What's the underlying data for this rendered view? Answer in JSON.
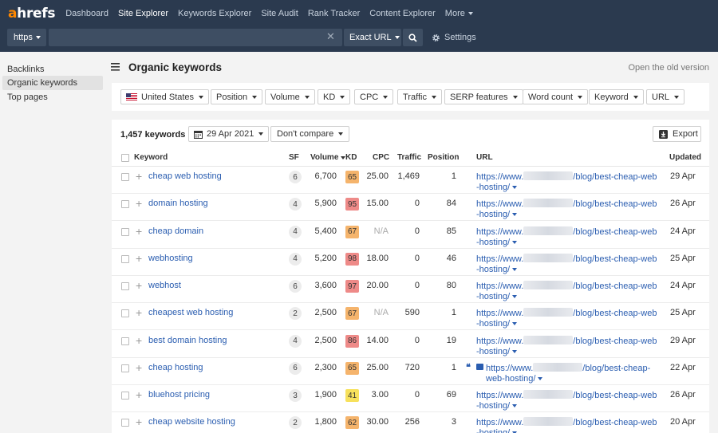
{
  "logo": {
    "a": "a",
    "rest": "hrefs"
  },
  "nav": [
    {
      "label": "Dashboard",
      "active": false
    },
    {
      "label": "Site Explorer",
      "active": true
    },
    {
      "label": "Keywords Explorer",
      "active": false
    },
    {
      "label": "Site Audit",
      "active": false
    },
    {
      "label": "Rank Tracker",
      "active": false
    },
    {
      "label": "Content Explorer",
      "active": false
    },
    {
      "label": "More",
      "active": false
    }
  ],
  "search": {
    "protocol": "https",
    "value": "",
    "mode": "Exact URL",
    "settings_label": "Settings"
  },
  "sidebar": {
    "items": [
      {
        "label": "Backlinks",
        "active": false
      },
      {
        "label": "Organic keywords",
        "active": true
      },
      {
        "label": "Top pages",
        "active": false
      }
    ]
  },
  "header": {
    "title": "Organic keywords",
    "old_version": "Open the old version"
  },
  "filters": [
    {
      "label": "United States",
      "flag": true
    },
    {
      "label": "Position"
    },
    {
      "label": "Volume"
    },
    {
      "label": "KD"
    },
    {
      "label": "CPC"
    },
    {
      "label": "Traffic"
    },
    {
      "label": "SERP features"
    },
    {
      "label": "Word count"
    },
    {
      "label": "Keyword"
    },
    {
      "label": "URL"
    }
  ],
  "toolbar": {
    "count": "1,457 keywords",
    "date": "29 Apr 2021",
    "compare": "Don't compare",
    "export": "Export"
  },
  "columns": {
    "keyword": "Keyword",
    "sf": "SF",
    "volume": "Volume",
    "kd": "KD",
    "cpc": "CPC",
    "traffic": "Traffic",
    "position": "Position",
    "url": "URL",
    "updated": "Updated"
  },
  "kd_colors": {
    "low": "#f7e15c",
    "mid": "#f5b46c",
    "high": "#ee8a88"
  },
  "rows": [
    {
      "keyword": "cheap web hosting",
      "sf": "6",
      "volume": "6,700",
      "kd": "65",
      "kd_level": "mid",
      "cpc": "25.00",
      "traffic": "1,469",
      "position": "1",
      "url_a": "https://www.",
      "url_b": "/blog/best-cheap-web",
      "url_c": "-hosting/",
      "updated": "29 Apr"
    },
    {
      "keyword": "domain hosting",
      "sf": "4",
      "volume": "5,900",
      "kd": "95",
      "kd_level": "high",
      "cpc": "15.00",
      "traffic": "0",
      "position": "84",
      "url_a": "https://www.",
      "url_b": "/blog/best-cheap-web",
      "url_c": "-hosting/",
      "updated": "26 Apr"
    },
    {
      "keyword": "cheap domain",
      "sf": "4",
      "volume": "5,400",
      "kd": "67",
      "kd_level": "mid",
      "cpc": "N/A",
      "traffic": "0",
      "position": "85",
      "url_a": "https://www.",
      "url_b": "/blog/best-cheap-web",
      "url_c": "-hosting/",
      "updated": "24 Apr"
    },
    {
      "keyword": "webhosting",
      "sf": "4",
      "volume": "5,200",
      "kd": "98",
      "kd_level": "high",
      "cpc": "18.00",
      "traffic": "0",
      "position": "46",
      "url_a": "https://www.",
      "url_b": "/blog/best-cheap-web",
      "url_c": "-hosting/",
      "updated": "25 Apr"
    },
    {
      "keyword": "webhost",
      "sf": "6",
      "volume": "3,600",
      "kd": "97",
      "kd_level": "high",
      "cpc": "20.00",
      "traffic": "0",
      "position": "80",
      "url_a": "https://www.",
      "url_b": "/blog/best-cheap-web",
      "url_c": "-hosting/",
      "updated": "24 Apr"
    },
    {
      "keyword": "cheapest web hosting",
      "sf": "2",
      "volume": "2,500",
      "kd": "67",
      "kd_level": "mid",
      "cpc": "N/A",
      "traffic": "590",
      "position": "1",
      "url_a": "https://www.",
      "url_b": "/blog/best-cheap-web",
      "url_c": "-hosting/",
      "updated": "25 Apr"
    },
    {
      "keyword": "best domain hosting",
      "sf": "4",
      "volume": "2,500",
      "kd": "86",
      "kd_level": "high",
      "cpc": "14.00",
      "traffic": "0",
      "position": "19",
      "url_a": "https://www.",
      "url_b": "/blog/best-cheap-web",
      "url_c": "-hosting/",
      "updated": "29 Apr"
    },
    {
      "keyword": "cheap hosting",
      "sf": "6",
      "volume": "2,300",
      "kd": "65",
      "kd_level": "mid",
      "cpc": "25.00",
      "traffic": "720",
      "position": "1",
      "url_a": "https://www.",
      "url_b": "/blog/best-cheap-",
      "url_c": "web-hosting/",
      "updated": "22 Apr",
      "serp_icons": true
    },
    {
      "keyword": "bluehost pricing",
      "sf": "3",
      "volume": "1,900",
      "kd": "41",
      "kd_level": "low",
      "cpc": "3.00",
      "traffic": "0",
      "position": "69",
      "url_a": "https://www.",
      "url_b": "/blog/best-cheap-web",
      "url_c": "-hosting/",
      "updated": "26 Apr"
    },
    {
      "keyword": "cheap website hosting",
      "sf": "2",
      "volume": "1,800",
      "kd": "62",
      "kd_level": "mid",
      "cpc": "30.00",
      "traffic": "256",
      "position": "3",
      "url_a": "https://www.",
      "url_b": "/blog/best-cheap-web",
      "url_c": "-hosting/",
      "updated": "20 Apr"
    }
  ]
}
